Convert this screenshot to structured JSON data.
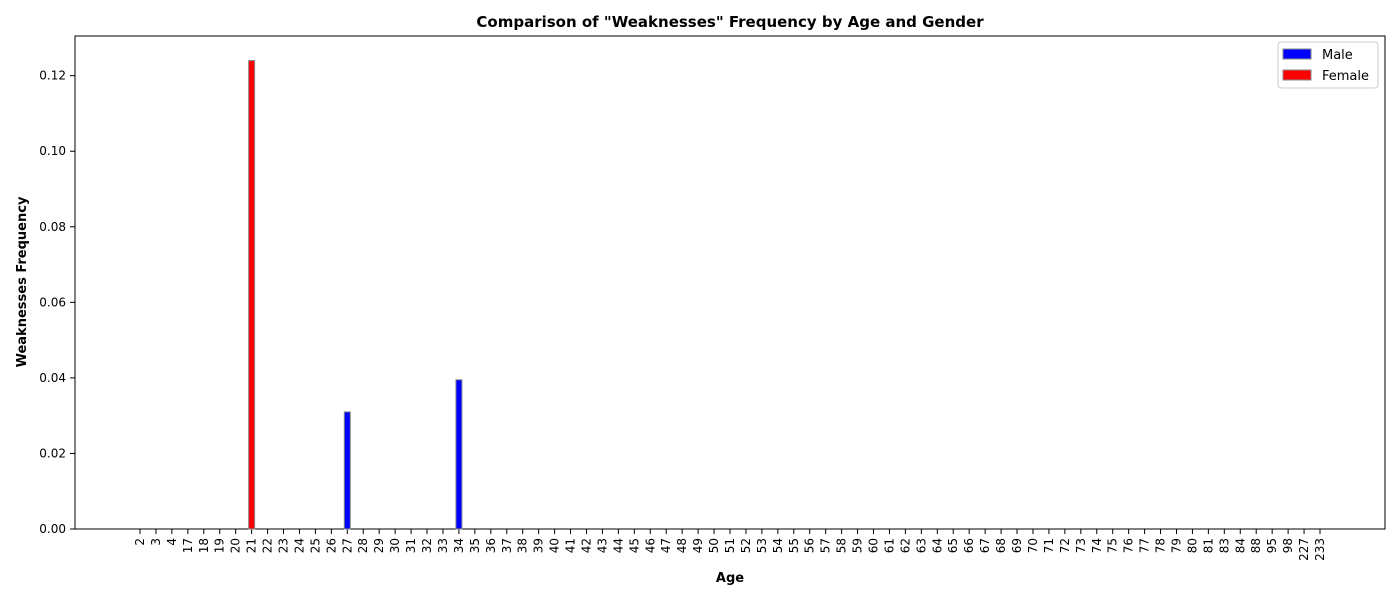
{
  "chart_data": {
    "type": "bar",
    "title": "Comparison of \"Weaknesses\" Frequency by Age and Gender",
    "xlabel": "Age",
    "ylabel": "Weaknesses Frequency",
    "categories": [
      "2",
      "3",
      "4",
      "17",
      "18",
      "19",
      "20",
      "21",
      "22",
      "23",
      "24",
      "25",
      "26",
      "27",
      "28",
      "29",
      "30",
      "31",
      "32",
      "33",
      "34",
      "35",
      "36",
      "37",
      "38",
      "39",
      "40",
      "41",
      "42",
      "43",
      "44",
      "45",
      "46",
      "47",
      "48",
      "49",
      "50",
      "51",
      "52",
      "53",
      "54",
      "55",
      "56",
      "57",
      "58",
      "59",
      "60",
      "61",
      "62",
      "63",
      "64",
      "65",
      "66",
      "67",
      "68",
      "69",
      "70",
      "71",
      "72",
      "73",
      "74",
      "75",
      "76",
      "77",
      "78",
      "79",
      "80",
      "81",
      "83",
      "84",
      "88",
      "95",
      "98",
      "227",
      "233"
    ],
    "series": [
      {
        "name": "Male",
        "color": "#0000ff",
        "values": {
          "27": 0.031,
          "34": 0.0395
        }
      },
      {
        "name": "Female",
        "color": "#ff0000",
        "values": {
          "21": 0.124
        }
      }
    ],
    "ylim": [
      0,
      0.1305
    ],
    "yticks": [
      "0.00",
      "0.02",
      "0.04",
      "0.06",
      "0.08",
      "0.10",
      "0.12"
    ],
    "grid": false,
    "legend_position": "top-right"
  }
}
